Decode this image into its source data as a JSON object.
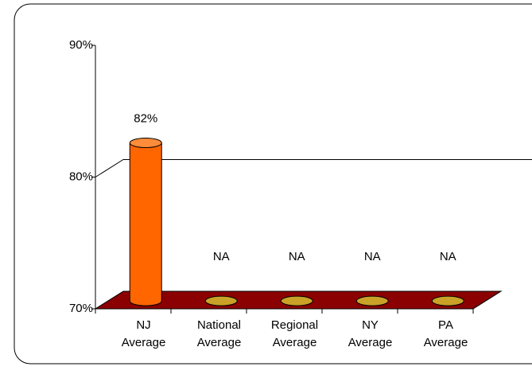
{
  "chart_data": {
    "type": "bar3d",
    "categories": [
      "NJ Average",
      "National Average",
      "Regional Average",
      "NY Average",
      "PA Average"
    ],
    "values": [
      82,
      null,
      null,
      null,
      null
    ],
    "value_labels": [
      "82%",
      "NA",
      "NA",
      "NA",
      "NA"
    ],
    "color": "#ff6600",
    "placeholder_color": "#c9a227",
    "floor_color": "#8b0000",
    "ylim": [
      70,
      90
    ],
    "yticks": [
      {
        "value": 70,
        "label": "70%"
      },
      {
        "value": 80,
        "label": "80%"
      },
      {
        "value": 90,
        "label": "90%"
      }
    ],
    "grid": true
  }
}
